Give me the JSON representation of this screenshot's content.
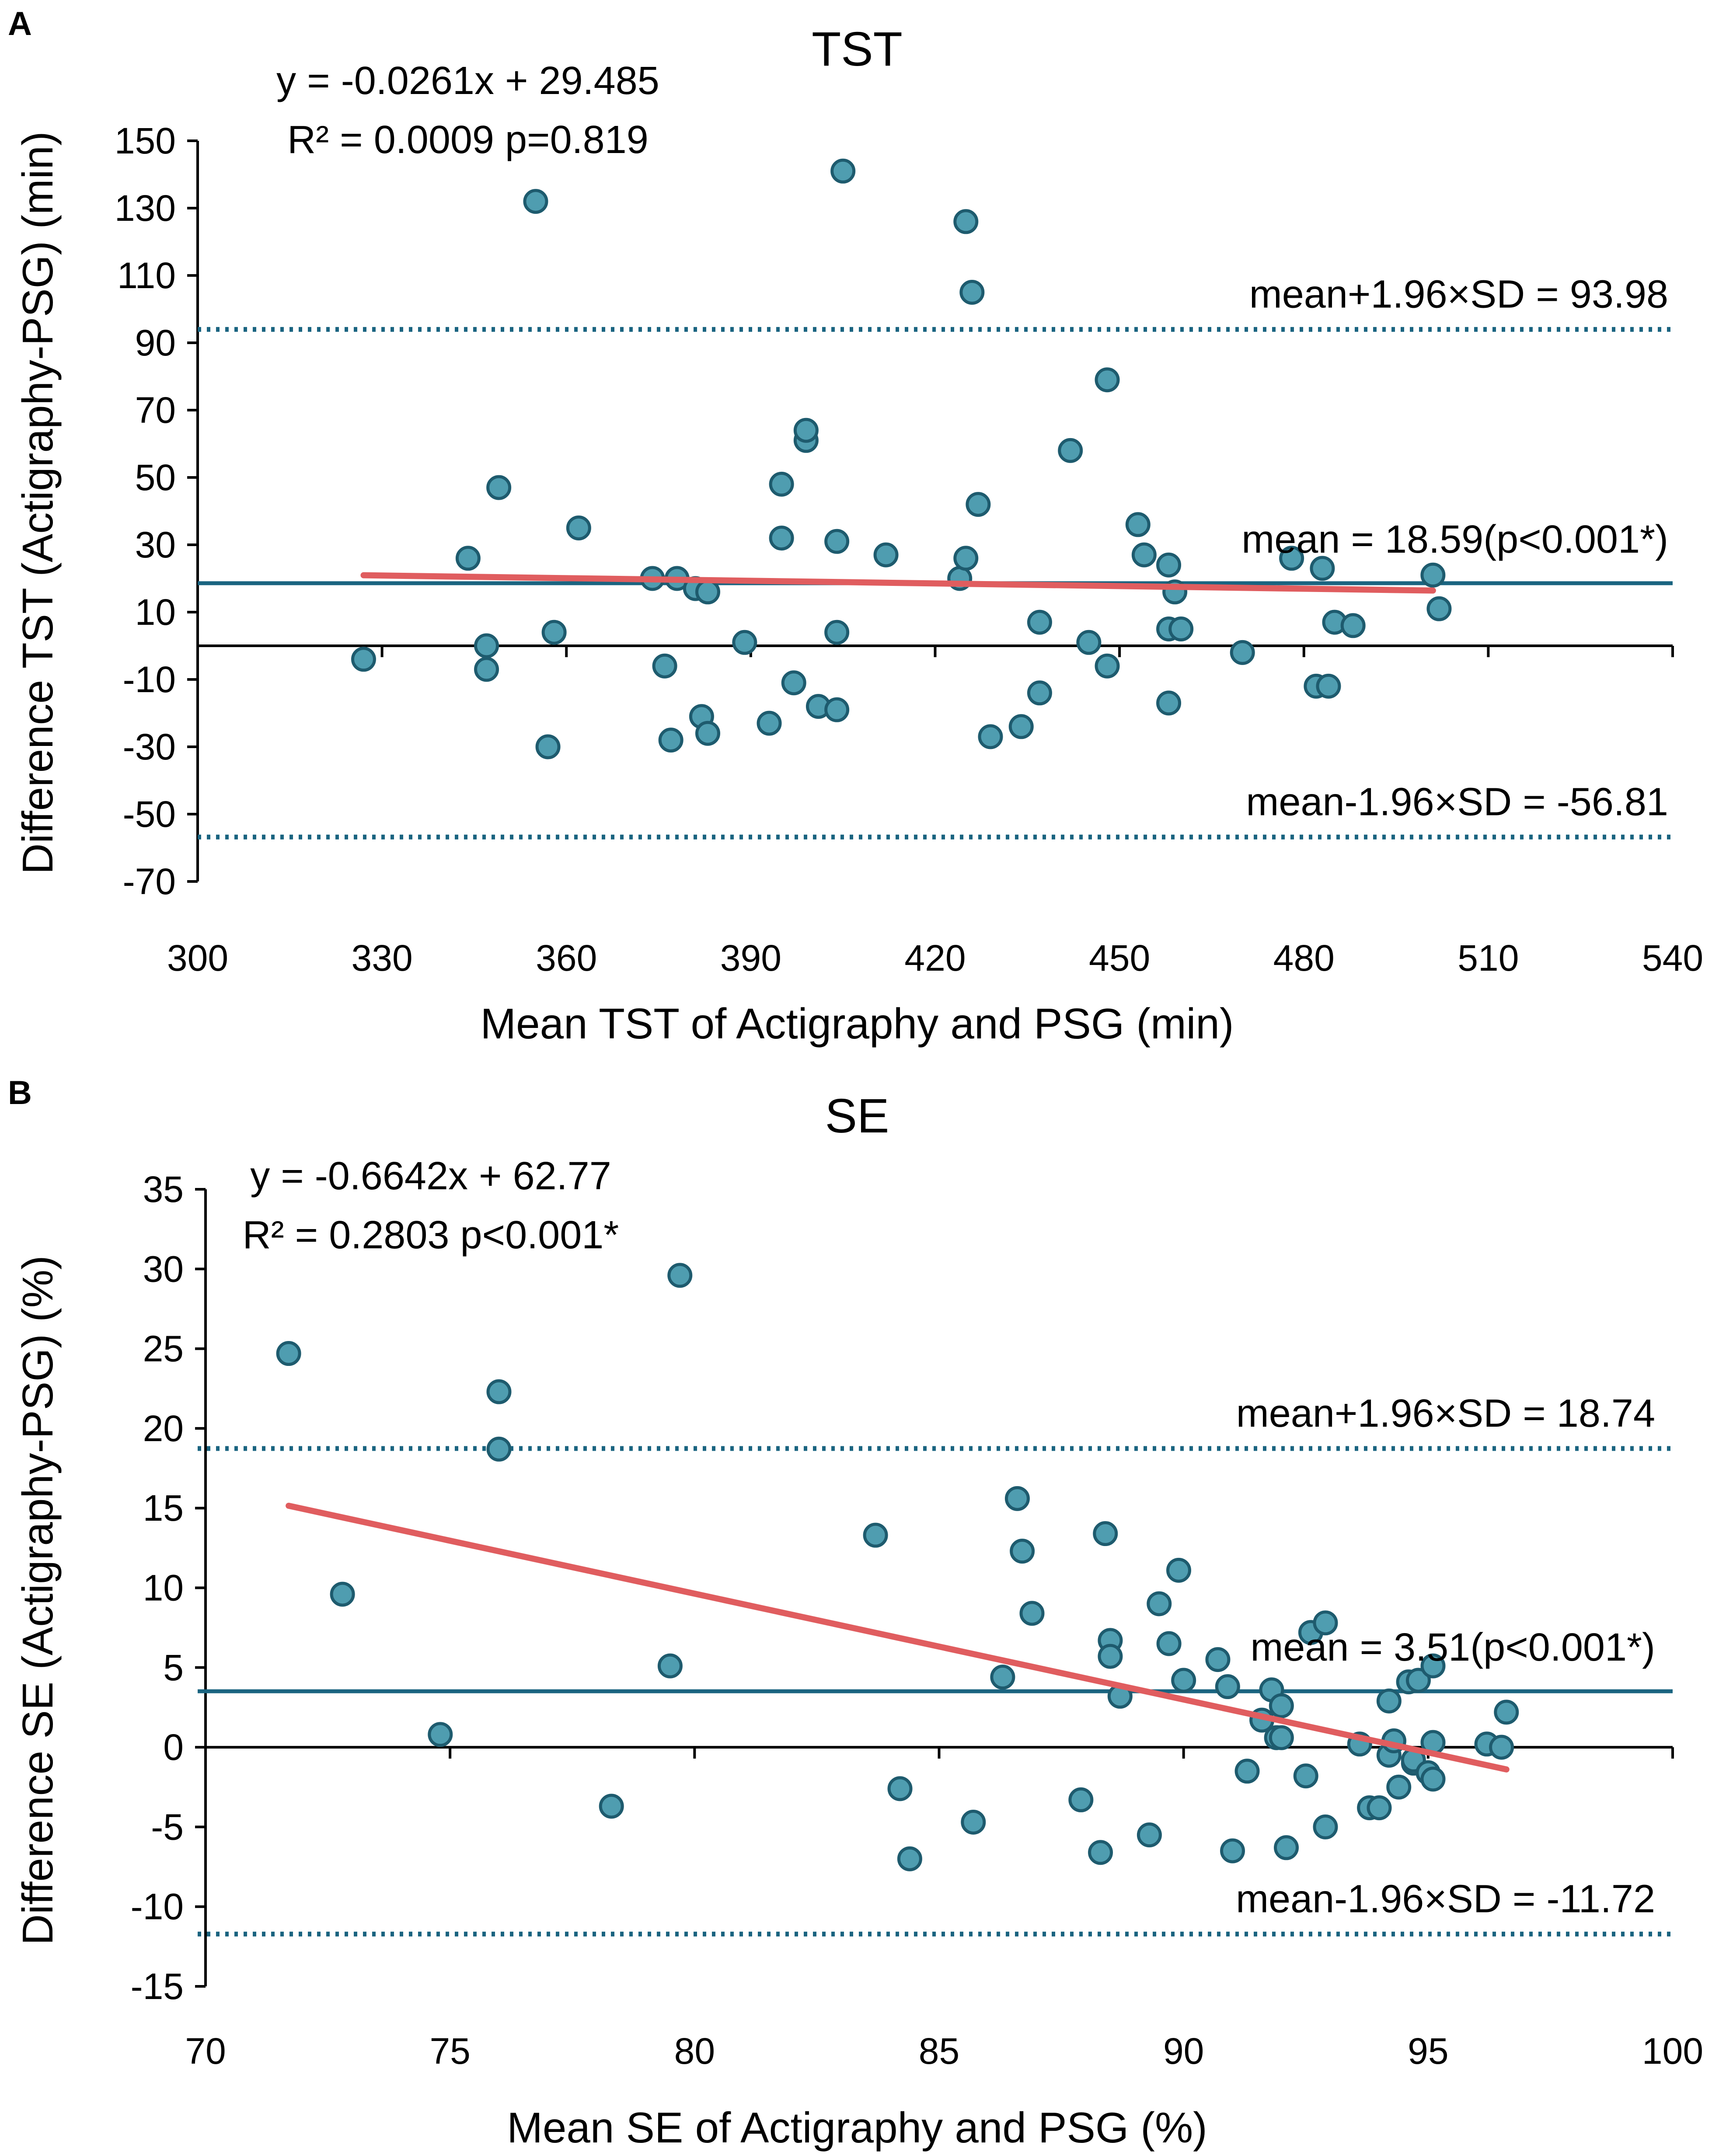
{
  "chart_data": [
    {
      "type": "scatter",
      "panel_label": "A",
      "title": "TST",
      "xlabel": "Mean TST of Actigraphy and PSG (min)",
      "ylabel": "Difference TST (Actigraphy-PSG) (min)",
      "xlim": [
        300,
        540
      ],
      "ylim": [
        -70,
        150
      ],
      "xticks": [
        300,
        330,
        360,
        390,
        420,
        450,
        480,
        510,
        540
      ],
      "yticks": [
        150,
        130,
        110,
        90,
        70,
        50,
        30,
        10,
        -10,
        -30,
        -50,
        -70
      ],
      "equation_text": "y = -0.0261x + 29.485",
      "r2_text": "R² = 0.0009 p=0.819",
      "regression": {
        "slope": -0.0261,
        "intercept": 29.485,
        "x_range": [
          327,
          501
        ]
      },
      "mean": {
        "value": 18.59,
        "label": "mean = 18.59(p<0.001*)"
      },
      "upper_limit": {
        "value": 93.98,
        "label": "mean+1.96×SD = 93.98"
      },
      "lower_limit": {
        "value": -56.81,
        "label": "mean-1.96×SD = -56.81"
      },
      "points": [
        [
          327,
          -4
        ],
        [
          344,
          26
        ],
        [
          347,
          -7
        ],
        [
          347,
          0
        ],
        [
          349,
          47
        ],
        [
          355,
          132
        ],
        [
          357,
          -30
        ],
        [
          358,
          4
        ],
        [
          362,
          35
        ],
        [
          374,
          20
        ],
        [
          376,
          -6
        ],
        [
          377,
          -28
        ],
        [
          378,
          20
        ],
        [
          381,
          17
        ],
        [
          382,
          -21
        ],
        [
          383,
          -26
        ],
        [
          383,
          16
        ],
        [
          389,
          1
        ],
        [
          393,
          -23
        ],
        [
          395,
          48
        ],
        [
          395,
          32
        ],
        [
          397,
          -11
        ],
        [
          399,
          61
        ],
        [
          399,
          64
        ],
        [
          401,
          -18
        ],
        [
          404,
          31
        ],
        [
          404,
          4
        ],
        [
          404,
          -19
        ],
        [
          405,
          141
        ],
        [
          412,
          27
        ],
        [
          424,
          20
        ],
        [
          425,
          26
        ],
        [
          425,
          126
        ],
        [
          426,
          105
        ],
        [
          427,
          42
        ],
        [
          429,
          -27
        ],
        [
          434,
          -24
        ],
        [
          437,
          7
        ],
        [
          437,
          -14
        ],
        [
          442,
          58
        ],
        [
          445,
          1
        ],
        [
          448,
          79
        ],
        [
          448,
          -6
        ],
        [
          453,
          36
        ],
        [
          454,
          27
        ],
        [
          458,
          24
        ],
        [
          458,
          5
        ],
        [
          459,
          16
        ],
        [
          460,
          5
        ],
        [
          458,
          -17
        ],
        [
          470,
          -2
        ],
        [
          478,
          26
        ],
        [
          482,
          -12
        ],
        [
          483,
          23
        ],
        [
          484,
          -12
        ],
        [
          485,
          7
        ],
        [
          488,
          6
        ],
        [
          501,
          21
        ],
        [
          502,
          11
        ]
      ]
    },
    {
      "type": "scatter",
      "panel_label": "B",
      "title": "SE",
      "xlabel": "Mean SE of Actigraphy and PSG  (%)",
      "ylabel": "Difference SE (Actigraphy-PSG)  (%)",
      "xlim": [
        70,
        100
      ],
      "ylim": [
        -15,
        35
      ],
      "xticks": [
        70,
        75,
        80,
        85,
        90,
        95,
        100
      ],
      "yticks": [
        35,
        30,
        25,
        20,
        15,
        10,
        5,
        0,
        -5,
        -10,
        -15
      ],
      "equation_text": "y = -0.6642x + 62.77",
      "r2_text": "R² = 0.2803 p<0.001*",
      "regression": {
        "slope": -0.6642,
        "intercept": 62.77,
        "x_range": [
          71.7,
          96.6
        ]
      },
      "mean": {
        "value": 3.51,
        "label": "mean = 3.51(p<0.001*)"
      },
      "upper_limit": {
        "value": 18.74,
        "label": "mean+1.96×SD = 18.74"
      },
      "lower_limit": {
        "value": -11.72,
        "label": "mean-1.96×SD = -11.72"
      },
      "points": [
        [
          71.7,
          24.7
        ],
        [
          72.8,
          9.6
        ],
        [
          74.8,
          0.8
        ],
        [
          76.0,
          22.3
        ],
        [
          76.0,
          18.7
        ],
        [
          78.3,
          -3.7
        ],
        [
          79.5,
          5.1
        ],
        [
          79.7,
          29.6
        ],
        [
          83.7,
          13.3
        ],
        [
          84.2,
          -2.6
        ],
        [
          84.4,
          -7.0
        ],
        [
          85.7,
          -4.7
        ],
        [
          86.3,
          4.4
        ],
        [
          86.6,
          15.6
        ],
        [
          86.7,
          12.3
        ],
        [
          86.9,
          8.4
        ],
        [
          87.9,
          -3.3
        ],
        [
          88.3,
          -6.6
        ],
        [
          88.4,
          13.4
        ],
        [
          88.5,
          6.7
        ],
        [
          88.5,
          5.7
        ],
        [
          88.7,
          3.2
        ],
        [
          89.3,
          -5.5
        ],
        [
          89.5,
          9.0
        ],
        [
          89.7,
          6.5
        ],
        [
          89.9,
          11.1
        ],
        [
          90.0,
          4.2
        ],
        [
          90.7,
          5.5
        ],
        [
          90.9,
          3.8
        ],
        [
          91.0,
          -6.5
        ],
        [
          91.3,
          -1.5
        ],
        [
          91.6,
          1.7
        ],
        [
          91.8,
          3.6
        ],
        [
          91.9,
          0.6
        ],
        [
          92.0,
          0.6
        ],
        [
          92.0,
          2.6
        ],
        [
          92.1,
          -6.3
        ],
        [
          92.5,
          -1.8
        ],
        [
          92.6,
          7.2
        ],
        [
          92.9,
          7.8
        ],
        [
          92.9,
          -5.0
        ],
        [
          93.6,
          0.2
        ],
        [
          93.8,
          -3.8
        ],
        [
          94.0,
          -3.8
        ],
        [
          94.2,
          2.9
        ],
        [
          94.2,
          -0.5
        ],
        [
          94.3,
          0.4
        ],
        [
          94.4,
          -2.5
        ],
        [
          94.6,
          4.1
        ],
        [
          94.7,
          -1.0
        ],
        [
          94.7,
          -0.8
        ],
        [
          94.8,
          4.2
        ],
        [
          95.0,
          -1.6
        ],
        [
          95.1,
          -2.0
        ],
        [
          95.1,
          0.3
        ],
        [
          95.1,
          5.1
        ],
        [
          96.2,
          0.2
        ],
        [
          96.5,
          0.0
        ],
        [
          96.6,
          2.2
        ]
      ]
    }
  ],
  "colors": {
    "point_fill": "#4f9db0",
    "point_stroke": "#1e5b6e",
    "mean_line": "#1a6480",
    "limit_line": "#1a6480",
    "regression_line": "#e05d5f",
    "axis": "#000000"
  }
}
